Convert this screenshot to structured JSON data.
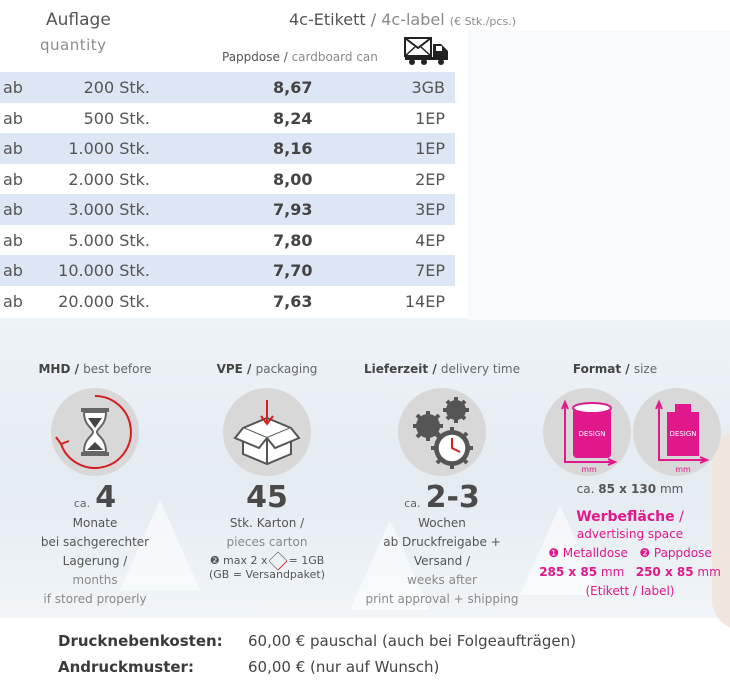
{
  "header": {
    "auflage": "Auflage",
    "quantity": "quantity",
    "label_de": "4c-Etikett",
    "label_sep": " / ",
    "label_en": "4c-label",
    "label_unit": "(€ Stk./pcs.)",
    "pappdose_de": "Pappdose",
    "pappdose_en": "cardboard can",
    "truck_icon": "mail-truck-icon"
  },
  "rows": [
    {
      "ab": "ab",
      "qty": "200 Stk.",
      "price": "8,67",
      "ship": "3GB"
    },
    {
      "ab": "ab",
      "qty": "500 Stk.",
      "price": "8,24",
      "ship": "1EP"
    },
    {
      "ab": "ab",
      "qty": "1.000 Stk.",
      "price": "8,16",
      "ship": "1EP"
    },
    {
      "ab": "ab",
      "qty": "2.000 Stk.",
      "price": "8,00",
      "ship": "2EP"
    },
    {
      "ab": "ab",
      "qty": "3.000 Stk.",
      "price": "7,93",
      "ship": "3EP"
    },
    {
      "ab": "ab",
      "qty": "5.000 Stk.",
      "price": "7,80",
      "ship": "4EP"
    },
    {
      "ab": "ab",
      "qty": "10.000 Stk.",
      "price": "7,70",
      "ship": "7EP"
    },
    {
      "ab": "ab",
      "qty": "20.000 Stk.",
      "price": "7,63",
      "ship": "14EP"
    }
  ],
  "mhd": {
    "title_de": "MHD",
    "title_en": "best before",
    "icon": "hourglass-icon",
    "prefix": "ca.",
    "value": "4",
    "unit": "Monate",
    "note_de": "bei sachgerechter Lagerung /",
    "unit_en": "months",
    "note_en": "if stored properly"
  },
  "vpe": {
    "title_de": "VPE",
    "title_en": "packaging",
    "icon": "box-icon",
    "value": "45",
    "unit_de": "Stk. Karton /",
    "unit_en": "pieces carton",
    "note1": "❷ max 2 x",
    "note1b": "= 1GB",
    "note2": "(GB = Versandpaket)"
  },
  "lieferzeit": {
    "title_de": "Lieferzeit",
    "title_en": "delivery time",
    "icon": "gears-clock-icon",
    "prefix": "ca.",
    "value": "2-3",
    "unit_de": "Wochen",
    "note_de": "ab Druckfreigabe + Versand /",
    "unit_en": "weeks after",
    "note_en": "print approval + shipping"
  },
  "format": {
    "title_de": "Format",
    "title_en": "size",
    "icon_design": "DESIGN",
    "mm": "mm",
    "size_prefix": "ca.",
    "size_value": "85 x 130",
    "size_unit": "mm",
    "werbe_de": "Werbefläche",
    "werbe_sep": " /",
    "werbe_en": "advertising space",
    "metall_label": "❶ Metalldose",
    "papp_label": "❷ Pappdose",
    "metall_size": "285 x 85",
    "papp_size": "250 x 85",
    "metall_unit": "mm",
    "papp_unit": "mm",
    "etikett": "(Etikett / label)",
    "accent": "#e0188c"
  },
  "costs": [
    {
      "key": "Drucknebenkosten:",
      "value": "60,00 € pauschal (auch bei Folgeaufträgen)"
    },
    {
      "key": "Andruckmuster:",
      "value": "60,00 € (nur auf Wunsch)"
    }
  ]
}
